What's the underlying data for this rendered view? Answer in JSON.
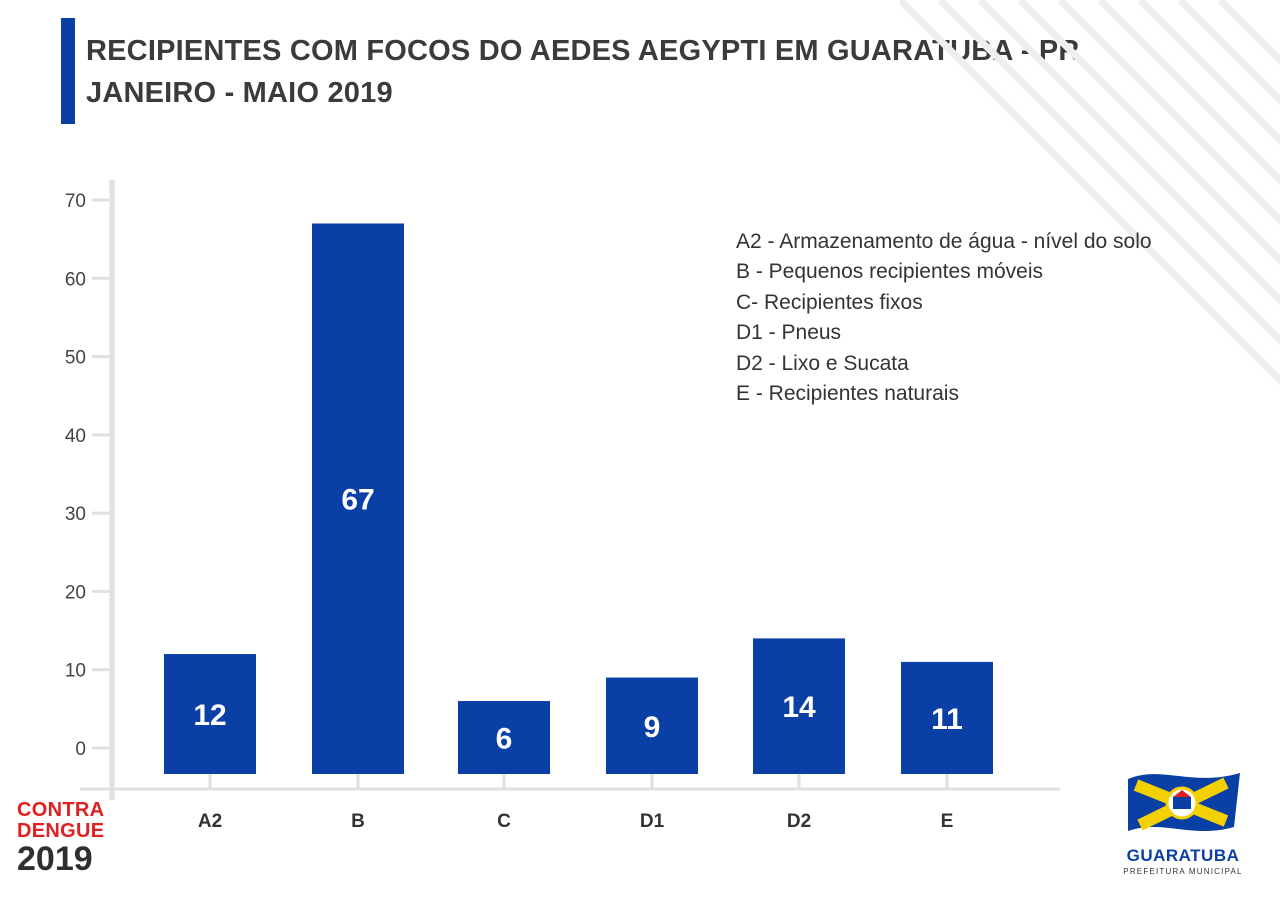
{
  "header": {
    "title_line1": "RECIPIENTES COM FOCOS DO AEDES AEGYPTI EM GUARATUBA - PR",
    "title_line2": "JANEIRO - MAIO 2019"
  },
  "chart_data": {
    "type": "bar",
    "categories": [
      "A2",
      "B",
      "C",
      "D1",
      "D2",
      "E"
    ],
    "values": [
      12,
      67,
      6,
      9,
      14,
      11
    ],
    "data_labels": [
      "12",
      "67",
      "6",
      "9",
      "14",
      "11"
    ],
    "y_ticks": [
      0,
      10,
      20,
      30,
      40,
      50,
      60,
      70
    ],
    "ylim": [
      0,
      70
    ],
    "grid": false,
    "bar_color": "#0a3fa6",
    "label_color": "#ffffff",
    "axis_color": "#e0e0e0",
    "legend_position": "top-right"
  },
  "legend": {
    "items": [
      "A2 - Armazenamento de água - nível do solo",
      "B - Pequenos recipientes móveis",
      "C- Recipientes fixos",
      "D1 - Pneus",
      "D2 - Lixo e Sucata",
      "E - Recipientes naturais"
    ]
  },
  "badge": {
    "line1": "CONTRA",
    "line2": "DENGUE",
    "line3": "2019"
  },
  "logo": {
    "name": "GUARATUBA",
    "subtitle": "PREFEITURA MUNICIPAL"
  },
  "colors": {
    "accent": "#0a3fa6",
    "title_text": "#3b3b3b",
    "badge_red": "#e02020",
    "flag_yellow": "#f5d000"
  }
}
